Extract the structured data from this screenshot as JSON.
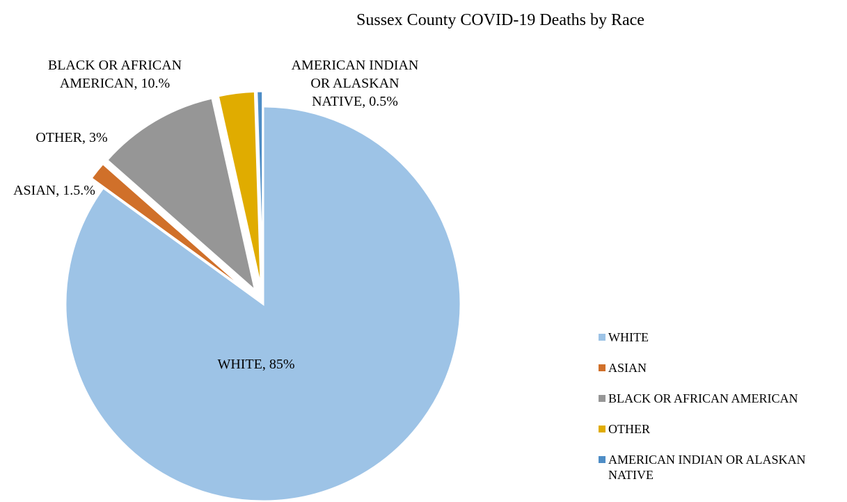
{
  "chart_data": {
    "type": "pie",
    "title": "Sussex County COVID-19 Deaths by Race",
    "categories": [
      "WHITE",
      "ASIAN",
      "BLACK OR AFRICAN AMERICAN",
      "OTHER",
      "AMERICAN INDIAN OR ALASKAN NATIVE"
    ],
    "values": [
      85,
      1.5,
      10.0,
      3,
      0.5
    ],
    "data_labels": [
      "WHITE, 85%",
      "ASIAN, 1.5.%",
      "BLACK OR AFRICAN AMERICAN, 10.%",
      "OTHER, 3%",
      "AMERICAN INDIAN OR ALASKAN NATIVE, 0.5%"
    ],
    "colors": [
      "#9dc3e6",
      "#d0702a",
      "#969696",
      "#e0ac00",
      "#4e8dc6"
    ],
    "legend_position": "right",
    "exploded": true
  }
}
